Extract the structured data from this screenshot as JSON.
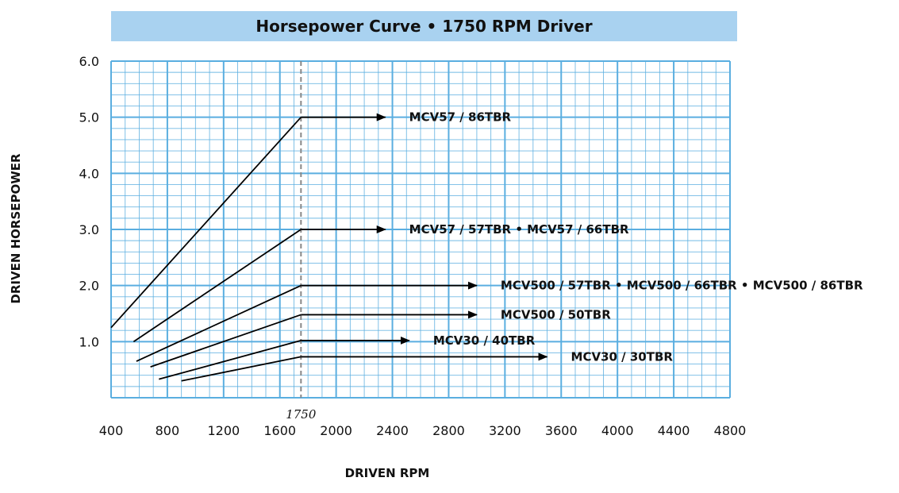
{
  "chart_data": {
    "type": "line",
    "title": "Horsepower Curve • 1750 RPM Driver",
    "xlabel": "DRIVEN RPM",
    "ylabel": "DRIVEN HORSEPOWER",
    "xlim": [
      400,
      4800
    ],
    "ylim": [
      0,
      6
    ],
    "x_ticks": [
      "400",
      "800",
      "1200",
      "1600",
      "2000",
      "2400",
      "2800",
      "3200",
      "3600",
      "4000",
      "4400",
      "4800"
    ],
    "y_ticks": [
      "1.0",
      "2.0",
      "3.0",
      "4.0",
      "5.0",
      "6.0"
    ],
    "marker_label": "1750",
    "marker_x": 1750,
    "grid": true,
    "grid_color": "#5aaee0",
    "series": [
      {
        "label": "MCV57 / 86TBR",
        "x": [
          400,
          1750
        ],
        "y": [
          1.25,
          5.0
        ],
        "arrow_end": 2350
      },
      {
        "label": "MCV57 / 57TBR  •  MCV57 / 66TBR",
        "x": [
          560,
          1750
        ],
        "y": [
          1.0,
          3.0
        ],
        "arrow_end": 2350
      },
      {
        "label": "MCV500 / 57TBR  •  MCV500 / 66TBR  •  MCV500 / 86TBR",
        "x": [
          580,
          1750
        ],
        "y": [
          0.65,
          2.0
        ],
        "arrow_end": 3000
      },
      {
        "label": "MCV500 / 50TBR",
        "x": [
          680,
          1750
        ],
        "y": [
          0.55,
          1.48
        ],
        "arrow_end": 3000
      },
      {
        "label": "MCV30 / 40TBR",
        "x": [
          740,
          1750
        ],
        "y": [
          0.33,
          1.02
        ],
        "arrow_end": 2520
      },
      {
        "label": "MCV30 / 30TBR",
        "x": [
          900,
          1750
        ],
        "y": [
          0.3,
          0.73
        ],
        "arrow_end": 3500
      }
    ]
  }
}
